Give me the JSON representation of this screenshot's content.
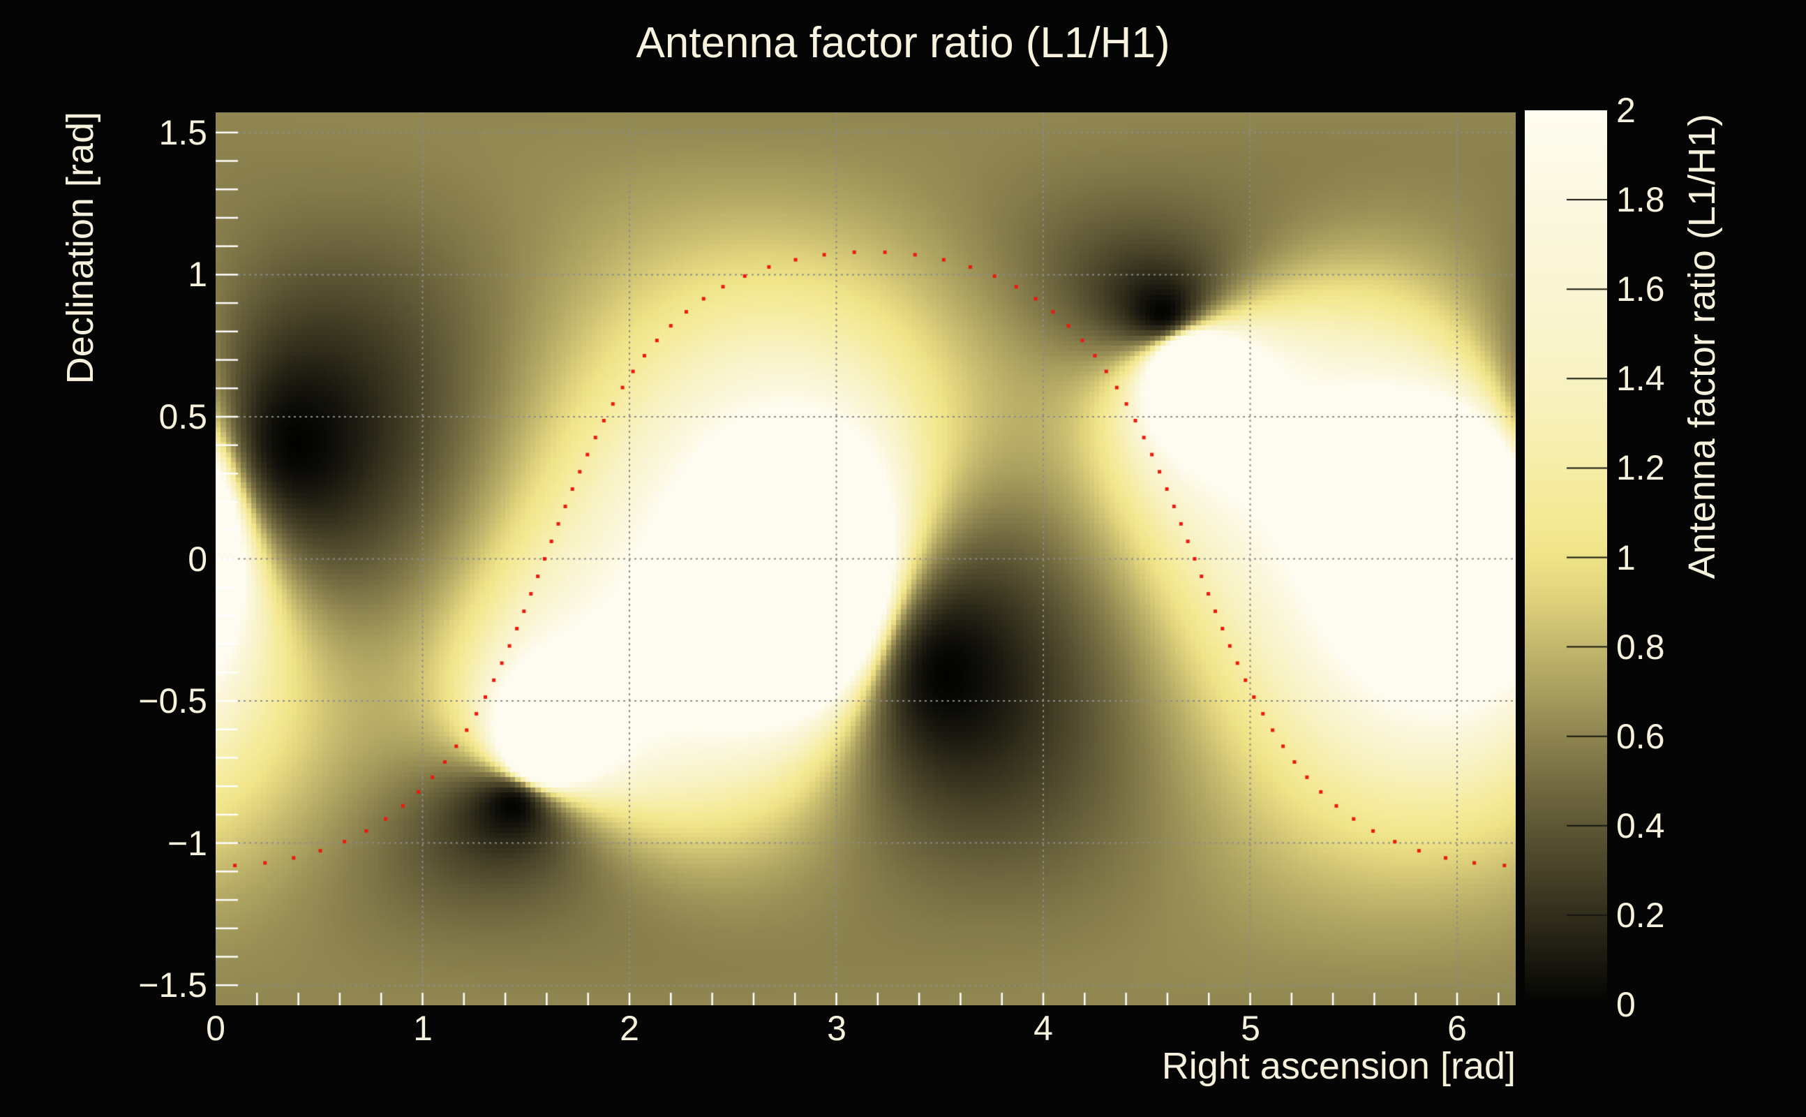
{
  "title": "Antenna factor ratio (L1/H1)",
  "axes": {
    "x": {
      "label": "Right ascension [rad]",
      "min": 0,
      "max": 6.2832,
      "tick_values": [
        0,
        1,
        2,
        3,
        4,
        5,
        6
      ],
      "tick_labels": [
        "0",
        "1",
        "2",
        "3",
        "4",
        "5",
        "6"
      ],
      "minor_tick_step": 0.2
    },
    "y": {
      "label": "Declination [rad]",
      "min": -1.5708,
      "max": 1.5708,
      "tick_values": [
        1.5,
        1,
        0.5,
        0,
        -0.5,
        -1,
        -1.5
      ],
      "tick_labels": [
        "1.5",
        "1",
        "0.5",
        "0",
        "−0.5",
        "−1",
        "−1.5"
      ],
      "minor_tick_step": 0.1
    }
  },
  "colorbar": {
    "label": "Antenna factor ratio (L1/H1)",
    "min": 0,
    "max": 2,
    "tick_values": [
      0,
      0.2,
      0.4,
      0.6,
      0.8,
      1,
      1.2,
      1.4,
      1.6,
      1.8,
      2
    ],
    "tick_labels": [
      "0",
      "0.2",
      "0.4",
      "0.6",
      "0.8",
      "1",
      "1.2",
      "1.4",
      "1.6",
      "1.8",
      "2"
    ]
  },
  "chart_data": {
    "type": "heatmap",
    "title": "Antenna factor ratio (L1/H1)",
    "xlabel": "Right ascension [rad]",
    "ylabel": "Declination [rad]",
    "zlabel": "Antenna factor ratio (L1/H1)",
    "x_range": [
      0,
      6.2832
    ],
    "y_range": [
      -1.5708,
      1.5708
    ],
    "z_range": [
      0,
      2
    ],
    "grid_bins": [
      256,
      176
    ],
    "value_model": "ratio = product(sin angular-distance to L1 nulls) / product(sin angular-distance to H1 nulls), clipped to [0,2]",
    "l1_null_points_black": [
      [
        0.4,
        0.41
      ],
      [
        1.43,
        -0.87
      ],
      [
        3.54,
        -0.41
      ],
      [
        4.58,
        0.87
      ]
    ],
    "h1_null_points_white": [
      [
        1.55,
        -0.7
      ],
      [
        2.97,
        -0.13
      ],
      [
        4.69,
        0.7
      ],
      [
        6.11,
        0.13
      ]
    ],
    "colormap_stops": [
      [
        0.0,
        "#030302"
      ],
      [
        0.1,
        "#1a180f"
      ],
      [
        0.2,
        "#322e1c"
      ],
      [
        0.3,
        "#484228"
      ],
      [
        0.4,
        "#5e5735"
      ],
      [
        0.5,
        "#756c42"
      ],
      [
        0.6,
        "#8e8450"
      ],
      [
        0.7,
        "#a89e5e"
      ],
      [
        0.8,
        "#c2b76d"
      ],
      [
        0.9,
        "#ddd07b"
      ],
      [
        1.0,
        "#efe388"
      ],
      [
        1.1,
        "#f4ea97"
      ],
      [
        1.2,
        "#f6eda7"
      ],
      [
        1.4,
        "#f8f2c3"
      ],
      [
        1.6,
        "#faf5d3"
      ],
      [
        1.8,
        "#fcf8e1"
      ],
      [
        2.0,
        "#fefcf0"
      ]
    ],
    "gridlines": {
      "x_values": [
        1,
        2,
        3,
        4,
        5,
        6
      ],
      "y_values": [
        -1.5,
        -1,
        -0.5,
        0,
        0.5,
        1,
        1.5
      ],
      "style": "dotted",
      "color": "#8c8c8c"
    },
    "track": {
      "description": "dotted red great-circle sky track",
      "inclination_rad": 1.08,
      "ascending_node_ra_rad": 1.59,
      "max_dec": 1.08,
      "min_dec": -1.08,
      "n_points": 90,
      "marker": "square",
      "marker_size_px": 5,
      "color": "#ec1a0e"
    }
  },
  "colors": {
    "background": "#050505",
    "text": "#f6f1dc",
    "axis_tick": "#ffffff",
    "colorbar_tick": "#15150f",
    "track": "#ec1a0e",
    "gridline": "#8c8c8c"
  }
}
